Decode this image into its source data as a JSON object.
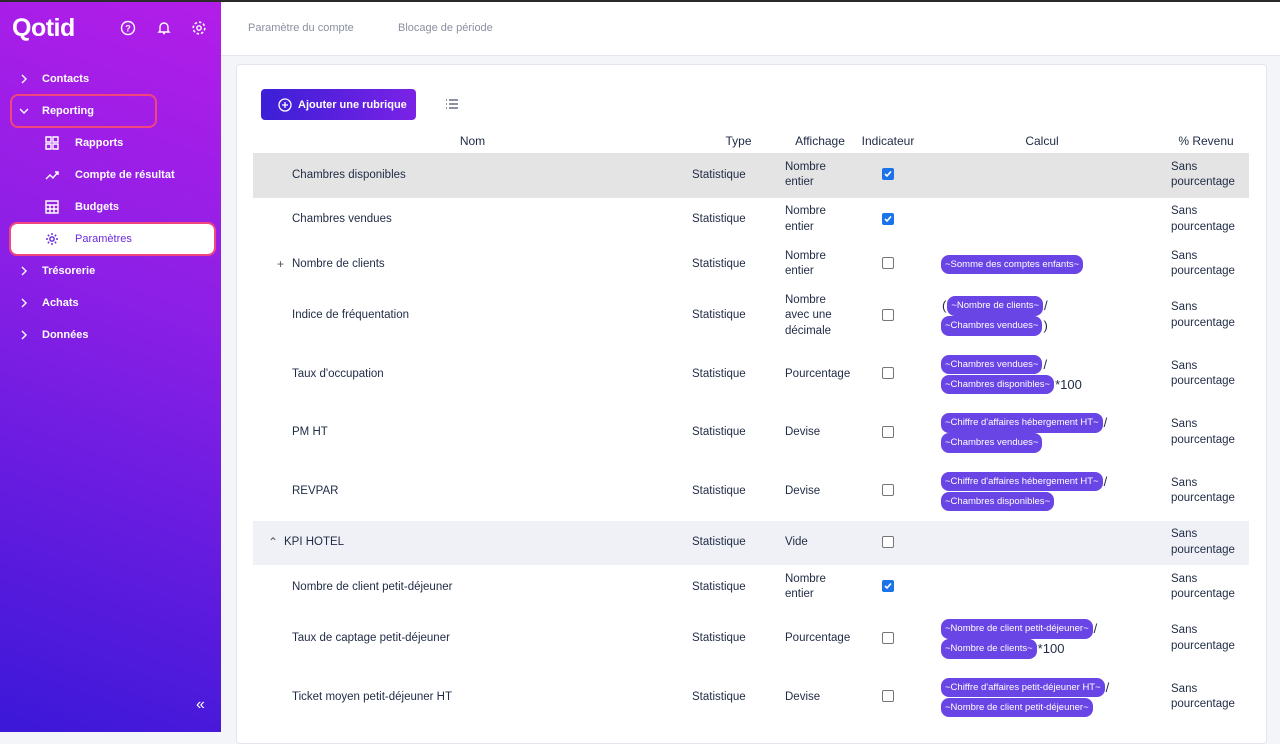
{
  "sidebar": {
    "logo": "Qotid",
    "nav": [
      {
        "label": "Contacts",
        "expanded": false,
        "children": []
      },
      {
        "label": "Reporting",
        "expanded": true,
        "highlighted": true,
        "children": [
          {
            "label": "Rapports",
            "icon": "grid"
          },
          {
            "label": "Compte de résultat",
            "icon": "trend"
          },
          {
            "label": "Budgets",
            "icon": "table"
          },
          {
            "label": "Paramètres",
            "icon": "gear",
            "active": true
          }
        ]
      },
      {
        "label": "Trésorerie",
        "expanded": false,
        "children": []
      },
      {
        "label": "Achats",
        "expanded": false,
        "children": []
      },
      {
        "label": "Données",
        "expanded": false,
        "children": []
      }
    ]
  },
  "tabs": [
    "Paramètre du compte",
    "Blocage de période"
  ],
  "toolbar": {
    "add_button": "Ajouter une rubrique"
  },
  "table": {
    "columns": [
      "Nom",
      "Type",
      "Affichage",
      "Indicateur",
      "Calcul",
      "% Revenu"
    ],
    "rows": [
      {
        "name": "Chambres disponibles",
        "type": "Statistique",
        "display": "Nombre entier",
        "indicator": true,
        "calc": [],
        "revenue": "Sans pourcentage",
        "selected": true
      },
      {
        "name": "Chambres vendues",
        "type": "Statistique",
        "display": "Nombre entier",
        "indicator": true,
        "calc": [],
        "revenue": "Sans pourcentage"
      },
      {
        "name": "Nombre de clients",
        "expander": "plus",
        "type": "Statistique",
        "display": "Nombre entier",
        "indicator": false,
        "calc": [
          [
            {
              "kind": "pill",
              "text": "~Somme des comptes enfants~"
            }
          ]
        ],
        "revenue": "Sans pourcentage"
      },
      {
        "name": "Indice de fréquentation",
        "type": "Statistique",
        "display": "Nombre avec une décimale",
        "indicator": false,
        "calc": [
          [
            {
              "kind": "op",
              "text": "("
            },
            {
              "kind": "pill",
              "text": "~Nombre de clients~"
            },
            {
              "kind": "op",
              "text": "/"
            }
          ],
          [
            {
              "kind": "pill",
              "text": "~Chambres vendues~"
            },
            {
              "kind": "op",
              "text": ")"
            }
          ]
        ],
        "revenue": "Sans pourcentage"
      },
      {
        "name": "Taux d'occupation",
        "type": "Statistique",
        "display": "Pourcentage",
        "indicator": false,
        "calc": [
          [
            {
              "kind": "pill",
              "text": "~Chambres vendues~"
            },
            {
              "kind": "op",
              "text": "/"
            }
          ],
          [
            {
              "kind": "pill",
              "text": "~Chambres disponibles~"
            },
            {
              "kind": "op",
              "text": "*100"
            }
          ]
        ],
        "revenue": "Sans pourcentage"
      },
      {
        "name": "PM HT",
        "type": "Statistique",
        "display": "Devise",
        "indicator": false,
        "calc": [
          [
            {
              "kind": "pill",
              "text": "~Chiffre d'affaires hébergement HT~"
            },
            {
              "kind": "op",
              "text": "/"
            }
          ],
          [
            {
              "kind": "pill",
              "text": "~Chambres vendues~"
            }
          ]
        ],
        "revenue": "Sans pourcentage"
      },
      {
        "name": "REVPAR",
        "type": "Statistique",
        "display": "Devise",
        "indicator": false,
        "calc": [
          [
            {
              "kind": "pill",
              "text": "~Chiffre d'affaires hébergement HT~"
            },
            {
              "kind": "op",
              "text": "/"
            }
          ],
          [
            {
              "kind": "pill",
              "text": "~Chambres disponibles~"
            }
          ]
        ],
        "revenue": "Sans pourcentage"
      },
      {
        "name": "KPI HOTEL",
        "expander": "collapse",
        "group": true,
        "type": "Statistique",
        "display": "Vide",
        "indicator": false,
        "calc": [],
        "revenue": "Sans pourcentage"
      },
      {
        "name": "Nombre de client petit-déjeuner",
        "type": "Statistique",
        "display": "Nombre entier",
        "indicator": true,
        "calc": [],
        "revenue": "Sans pourcentage"
      },
      {
        "name": "Taux de captage petit-déjeuner",
        "type": "Statistique",
        "display": "Pourcentage",
        "indicator": false,
        "calc": [
          [
            {
              "kind": "pill",
              "text": "~Nombre de client petit-déjeuner~"
            },
            {
              "kind": "op",
              "text": "/"
            }
          ],
          [
            {
              "kind": "pill",
              "text": "~Nombre de clients~"
            },
            {
              "kind": "op",
              "text": "*100"
            }
          ]
        ],
        "revenue": "Sans pourcentage"
      },
      {
        "name": "Ticket moyen petit-déjeuner HT",
        "type": "Statistique",
        "display": "Devise",
        "indicator": false,
        "calc": [
          [
            {
              "kind": "pill",
              "text": "~Chiffre d'affaires petit-déjeuner HT~"
            },
            {
              "kind": "op",
              "text": "/"
            }
          ],
          [
            {
              "kind": "pill",
              "text": "~Nombre de client petit-déjeuner~"
            }
          ]
        ],
        "revenue": "Sans pourcentage"
      }
    ]
  }
}
